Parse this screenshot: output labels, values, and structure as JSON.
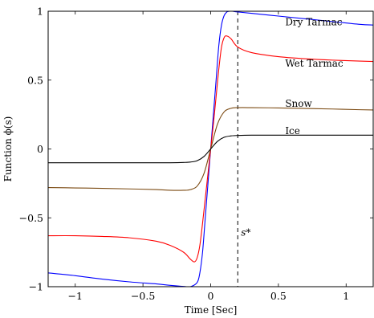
{
  "chart_data": {
    "type": "line",
    "xlabel": "Time [Sec]",
    "ylabel": "Function ϕ(s)",
    "xlim": [
      -1.2,
      1.2
    ],
    "ylim": [
      -1,
      1
    ],
    "x_ticks": [
      -1,
      -0.5,
      0,
      0.5,
      1
    ],
    "x_tick_labels": [
      "−1",
      "−0.5",
      "0",
      "0.5",
      "1"
    ],
    "y_ticks": [
      -1,
      -0.5,
      0,
      0.5,
      1
    ],
    "y_tick_labels": [
      "−1",
      "−0.5",
      "0",
      "0.5",
      "1"
    ],
    "grid": false,
    "series": [
      {
        "name": "Dry Tarmac",
        "color": "#0000ff",
        "x": [
          -1.2,
          -1.0,
          -0.8,
          -0.6,
          -0.4,
          -0.3,
          -0.2,
          -0.15,
          -0.1,
          -0.08,
          -0.06,
          -0.04,
          -0.02,
          0.0,
          0.02,
          0.04,
          0.06,
          0.08,
          0.1,
          0.12,
          0.14,
          0.16,
          0.2,
          0.3,
          0.5,
          0.7,
          0.9,
          1.1,
          1.2
        ],
        "y": [
          -0.9,
          -0.92,
          -0.945,
          -0.965,
          -0.98,
          -0.99,
          -0.998,
          -1.0,
          -0.97,
          -0.9,
          -0.75,
          -0.5,
          -0.25,
          0.0,
          0.25,
          0.5,
          0.75,
          0.9,
          0.97,
          0.995,
          1.0,
          1.0,
          0.995,
          0.985,
          0.965,
          0.945,
          0.925,
          0.905,
          0.9
        ]
      },
      {
        "name": "Wet Tarmac",
        "color": "#ff0000",
        "x": [
          -1.2,
          -1.0,
          -0.8,
          -0.6,
          -0.4,
          -0.3,
          -0.2,
          -0.15,
          -0.12,
          -0.1,
          -0.08,
          -0.06,
          -0.04,
          -0.02,
          0.0,
          0.02,
          0.04,
          0.06,
          0.08,
          0.1,
          0.12,
          0.15,
          0.2,
          0.3,
          0.5,
          0.7,
          0.9,
          1.1,
          1.2
        ],
        "y": [
          -0.63,
          -0.63,
          -0.635,
          -0.645,
          -0.67,
          -0.7,
          -0.75,
          -0.8,
          -0.82,
          -0.79,
          -0.7,
          -0.54,
          -0.36,
          -0.18,
          0.0,
          0.18,
          0.38,
          0.58,
          0.74,
          0.81,
          0.82,
          0.8,
          0.74,
          0.7,
          0.67,
          0.655,
          0.645,
          0.638,
          0.635
        ]
      },
      {
        "name": "Snow",
        "color": "#7b4a12",
        "x": [
          -1.2,
          -1.0,
          -0.8,
          -0.6,
          -0.4,
          -0.3,
          -0.2,
          -0.15,
          -0.1,
          -0.05,
          0.0,
          0.05,
          0.1,
          0.15,
          0.2,
          0.3,
          0.5,
          0.7,
          0.9,
          1.1,
          1.2
        ],
        "y": [
          -0.28,
          -0.283,
          -0.286,
          -0.29,
          -0.295,
          -0.3,
          -0.3,
          -0.295,
          -0.27,
          -0.18,
          0.0,
          0.18,
          0.27,
          0.295,
          0.3,
          0.3,
          0.298,
          0.294,
          0.29,
          0.285,
          0.283
        ]
      },
      {
        "name": "Ice",
        "color": "#000000",
        "x": [
          -1.2,
          -1.0,
          -0.8,
          -0.6,
          -0.4,
          -0.3,
          -0.2,
          -0.15,
          -0.1,
          -0.05,
          0.0,
          0.05,
          0.1,
          0.15,
          0.2,
          0.3,
          0.5,
          0.7,
          0.9,
          1.1,
          1.2
        ],
        "y": [
          -0.1,
          -0.1,
          -0.1,
          -0.1,
          -0.1,
          -0.1,
          -0.098,
          -0.095,
          -0.085,
          -0.055,
          0.0,
          0.055,
          0.085,
          0.095,
          0.098,
          0.1,
          0.1,
          0.1,
          0.1,
          0.1,
          0.1
        ]
      }
    ],
    "annotations": [
      {
        "text": "s*",
        "x": 0.2,
        "line": "vertical-dashed"
      },
      {
        "text": "Dry Tarmac",
        "x": 0.55,
        "y": 0.92
      },
      {
        "text": "Wet Tarmac",
        "x": 0.55,
        "y": 0.62
      },
      {
        "text": "Snow",
        "x": 0.55,
        "y": 0.33
      },
      {
        "text": "Ice",
        "x": 0.55,
        "y": 0.13
      }
    ]
  }
}
